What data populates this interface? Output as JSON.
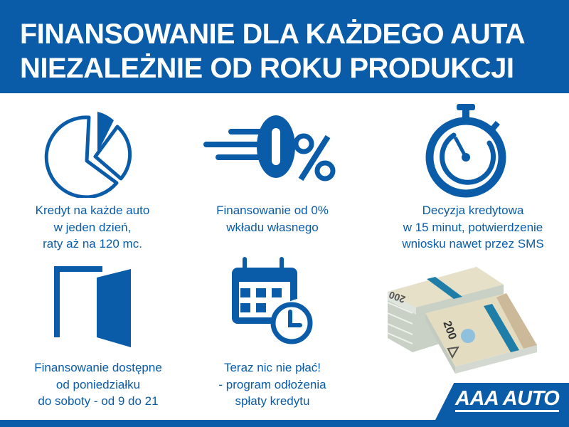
{
  "header": {
    "title_line1": "FINANSOWANIE DLA KAŻDEGO AUTA",
    "title_line2": "NIEZALEŻNIE OD ROKU PRODUKCJI"
  },
  "features": [
    {
      "icon": "pie-chart-icon",
      "lines": [
        "Kredyt na każde auto",
        "w jeden dzień,",
        "raty aż na 120 mc."
      ]
    },
    {
      "icon": "zero-percent-icon",
      "lines": [
        "Finansowanie od 0%",
        "wkładu własnego"
      ]
    },
    {
      "icon": "stopwatch-icon",
      "lines": [
        "Decyzja kredytowa",
        "w 15 minut, potwierdzenie",
        "wniosku nawet przez SMS"
      ]
    },
    {
      "icon": "open-door-icon",
      "lines": [
        "Finansowanie dostępne",
        "od poniedziałku",
        "do soboty - od 9 do 21"
      ]
    },
    {
      "icon": "calendar-clock-icon",
      "lines": [
        "Teraz nic nie płać!",
        "- program odłożenia",
        "spłaty kredytu"
      ]
    }
  ],
  "image": {
    "icon": "banknote-stacks-image",
    "banknote_value": "200"
  },
  "logo": {
    "text": "AAA AUTO"
  },
  "colors": {
    "brand_blue": "#0a5ca8",
    "background": "#ffffff"
  }
}
